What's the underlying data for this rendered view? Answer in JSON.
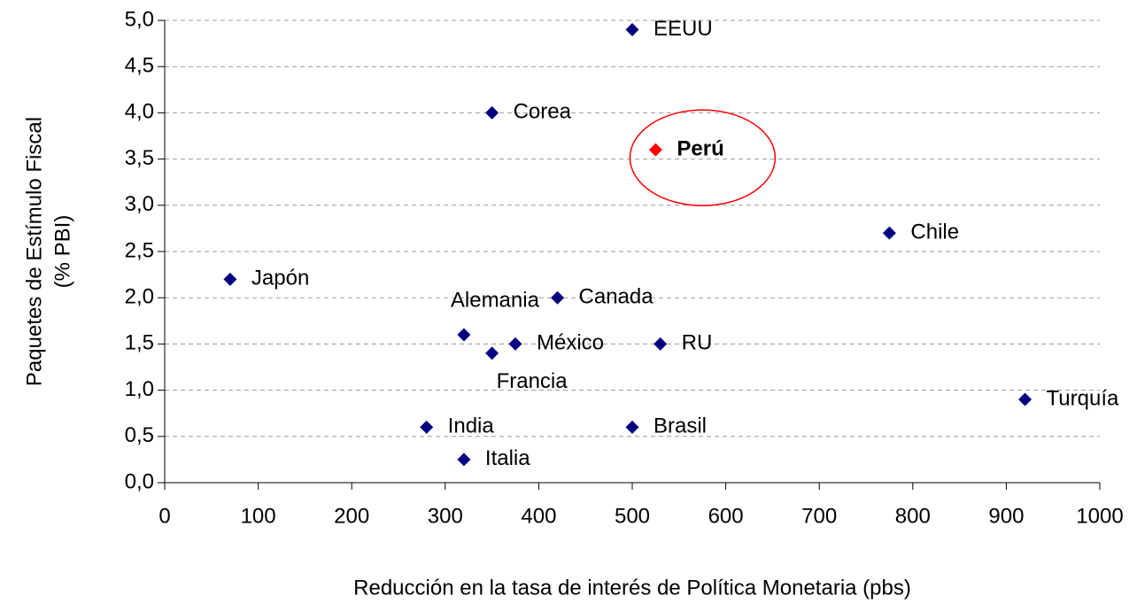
{
  "chart_data": {
    "type": "scatter",
    "xlabel": "Reducción en la tasa de interés de Política Monetaria (pbs)",
    "ylabel": [
      "Paquetes de Estímulo Fiscal",
      "(% PBI)"
    ],
    "point_labels": [
      "EEUU",
      "Corea",
      "Perú",
      "Chile",
      "Japón",
      "Canada",
      "Alemania",
      "México",
      "RU",
      "Francia",
      "Turquía",
      "India",
      "Brasil",
      "Italia"
    ],
    "x": [
      500,
      350,
      525,
      775,
      70,
      420,
      320,
      375,
      530,
      350,
      920,
      280,
      500,
      320
    ],
    "values": [
      4.9,
      4.0,
      3.6,
      2.7,
      2.2,
      2.0,
      1.6,
      1.5,
      1.5,
      1.4,
      0.9,
      0.6,
      0.6,
      0.25
    ],
    "colors": [
      "#000080",
      "#000080",
      "#ff0000",
      "#000080",
      "#000080",
      "#000080",
      "#000080",
      "#000080",
      "#000080",
      "#000080",
      "#000080",
      "#000080",
      "#000080",
      "#000080"
    ],
    "xlim": [
      0,
      1000
    ],
    "xticks": [
      0,
      100,
      200,
      300,
      400,
      500,
      600,
      700,
      800,
      900,
      1000
    ],
    "ylim": [
      0,
      5
    ],
    "yticks": [
      {
        "value": 0,
        "label": "0,0"
      },
      {
        "value": 0.5,
        "label": "0,5"
      },
      {
        "value": 1,
        "label": "1,0"
      },
      {
        "value": 1.5,
        "label": "1,5"
      },
      {
        "value": 2,
        "label": "2,0"
      },
      {
        "value": 2.5,
        "label": "2,5"
      },
      {
        "value": 3,
        "label": "3,0"
      },
      {
        "value": 3.5,
        "label": "3,5"
      },
      {
        "value": 4,
        "label": "4,0"
      },
      {
        "value": 4.5,
        "label": "4,5"
      },
      {
        "value": 5,
        "label": "5,0"
      }
    ],
    "grid": true
  }
}
